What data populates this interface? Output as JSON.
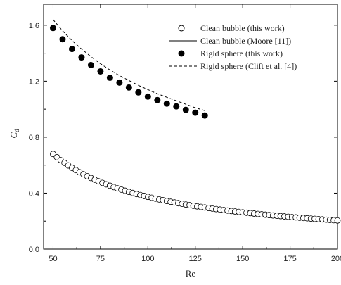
{
  "chart_data": {
    "type": "scatter",
    "xlabel": "Re",
    "ylabel": "C",
    "ylabel_sub": "d",
    "xlim": [
      45,
      200
    ],
    "ylim": [
      0.0,
      1.75
    ],
    "xticks": [
      50,
      75,
      100,
      125,
      150,
      175,
      200
    ],
    "xtick_labels": [
      "50",
      "75",
      "100",
      "125",
      "150",
      "175",
      "200"
    ],
    "yticks": [
      0.0,
      0.4,
      0.8,
      1.2,
      1.6
    ],
    "ytick_labels": [
      "0.0",
      "0.4",
      "0.8",
      "1.2",
      "1.6"
    ],
    "legend_position": "top-right",
    "series": [
      {
        "name": "Clean bubble (this work)",
        "style": "open-circle",
        "x_range": [
          50,
          200
        ],
        "x_step": 2,
        "y_at_ends": [
          0.68,
          0.205
        ]
      },
      {
        "name": "Clean bubble (Moore [11])",
        "style": "solid-line",
        "x_range": [
          50,
          200
        ],
        "y_at_ends": [
          0.675,
          0.205
        ]
      },
      {
        "name": "Rigid sphere (this work)",
        "style": "filled-circle",
        "x": [
          50,
          55,
          60,
          65,
          70,
          75,
          80,
          85,
          90,
          95,
          100,
          105,
          110,
          115,
          120,
          125,
          130
        ],
        "y": [
          1.58,
          1.5,
          1.43,
          1.37,
          1.315,
          1.27,
          1.225,
          1.19,
          1.155,
          1.12,
          1.09,
          1.065,
          1.04,
          1.02,
          0.995,
          0.975,
          0.955
        ]
      },
      {
        "name": "Rigid sphere (Clift et al. [4])",
        "style": "dashed-line",
        "x": [
          50,
          55,
          60,
          65,
          70,
          75,
          80,
          85,
          90,
          95,
          100,
          105,
          110,
          115,
          120,
          125,
          130
        ],
        "y": [
          1.64,
          1.56,
          1.49,
          1.43,
          1.375,
          1.325,
          1.28,
          1.24,
          1.205,
          1.17,
          1.14,
          1.11,
          1.085,
          1.06,
          1.035,
          1.01,
          0.99
        ]
      }
    ]
  }
}
